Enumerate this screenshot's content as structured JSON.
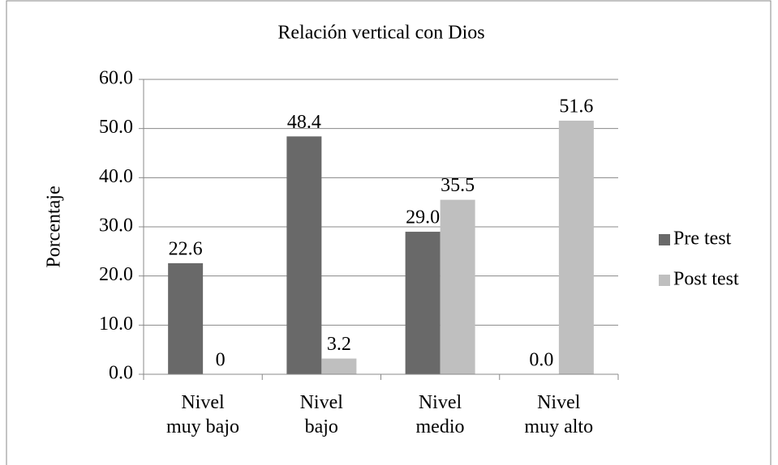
{
  "chart_data": {
    "type": "bar",
    "title": "Relación vertical con Dios",
    "ylabel": "Porcentaje",
    "categories": [
      "Nivel\nmuy bajo",
      "Nivel\nbajo",
      "Nivel\nmedio",
      "Nivel\nmuy alto"
    ],
    "series": [
      {
        "name": "Pre test",
        "color": "#696969",
        "values": [
          22.6,
          48.4,
          29.0,
          0.0
        ],
        "value_labels": [
          "22.6",
          "48.4",
          "29.0",
          "0.0"
        ]
      },
      {
        "name": "Post test",
        "color": "#bfbfbf",
        "values": [
          0,
          3.2,
          35.5,
          51.6
        ],
        "value_labels": [
          "0",
          "3.2",
          "35.5",
          "51.6"
        ]
      }
    ],
    "ylim": [
      0,
      60
    ],
    "yticks": [
      {
        "value": 0,
        "label": "0.0"
      },
      {
        "value": 10,
        "label": "10.0"
      },
      {
        "value": 20,
        "label": "20.0"
      },
      {
        "value": 30,
        "label": "30.0"
      },
      {
        "value": 40,
        "label": "40.0"
      },
      {
        "value": 50,
        "label": "50.0"
      },
      {
        "value": 60,
        "label": "60.0"
      }
    ],
    "grid": true,
    "legend": "right"
  }
}
